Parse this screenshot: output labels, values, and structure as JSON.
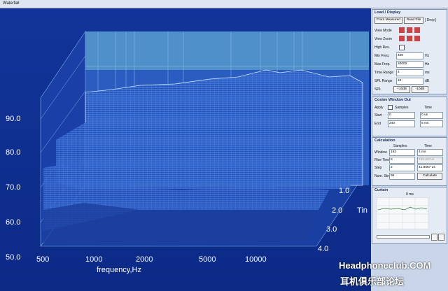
{
  "window": {
    "title": "Waterfall"
  },
  "plot": {
    "y_ticks": [
      "90.0",
      "80.0",
      "70.0",
      "60.0",
      "50.0"
    ],
    "x_ticks": [
      "500",
      "1000",
      "2000",
      "5000",
      "10000"
    ],
    "x_label": "frequency,Hz",
    "time_ticks": [
      "1.0",
      "2.0",
      "3.0",
      "4.0"
    ],
    "time_label": "Tin"
  },
  "panel": {
    "load_display": {
      "title": "Load / Display",
      "from_measured": "From Measured",
      "read_file": "Read File",
      "drop": "[ Drop ]",
      "view_mode": "View Mode",
      "view_zoom": "View Zoom",
      "high_res": "High Res.",
      "rows": [
        [
          "Min Freq.",
          "400",
          "Hz"
        ],
        [
          "Max Freq.",
          "20000",
          "Hz"
        ],
        [
          "Time Range",
          "4",
          "ms"
        ],
        [
          "SPL Range",
          "40",
          "dB"
        ]
      ],
      "spl": "SPL",
      "plus": "+10dB",
      "minus": "-10dB"
    },
    "cosine": {
      "title": "Cosine Window Out",
      "apply": "Apply",
      "samples": "Samples",
      "time": "Time",
      "rows": [
        [
          "Start",
          "0",
          "0 us"
        ],
        [
          "End",
          "240",
          "5 ms"
        ]
      ]
    },
    "calculation": {
      "title": "Calculation",
      "samples": "Samples",
      "time": "Time",
      "rows": [
        [
          "Window",
          "192",
          "4 ms"
        ],
        [
          "Rise Time",
          "8",
          "166.667us"
        ],
        [
          "Step",
          "2",
          "41.6667 us"
        ],
        [
          "Num. Steps",
          "96"
        ]
      ],
      "calculate": "Calculate"
    },
    "curtain": {
      "title": "Curtain",
      "time": "0 ms"
    }
  },
  "watermark": {
    "site": "Headphoneclub.COM",
    "chinese": "耳机俱乐部论坛"
  }
}
